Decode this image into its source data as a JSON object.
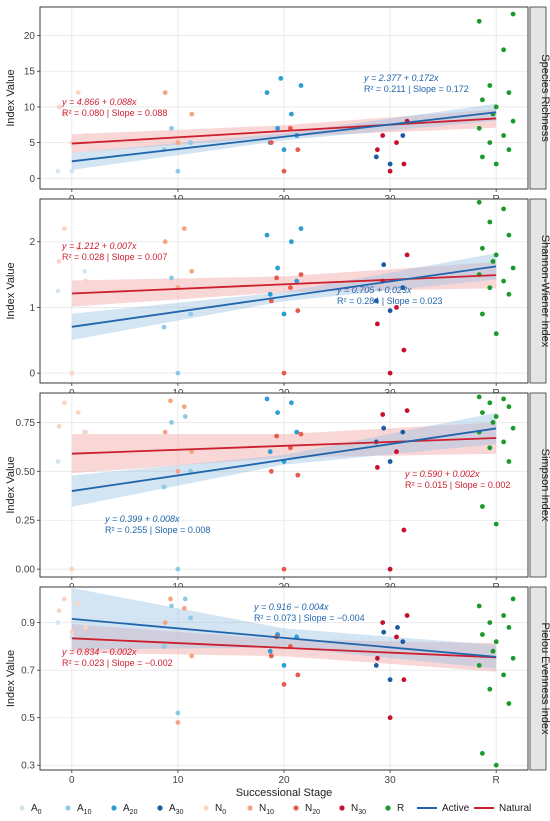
{
  "chart_data": [
    {
      "type": "scatter",
      "title": "Species Richness",
      "ylabel": "Index Value",
      "xlabel": "",
      "ylim": [
        -1.5,
        24
      ],
      "yticks": [
        0,
        5,
        10,
        15,
        20
      ],
      "ytick_labels": [
        "0",
        "5",
        "10",
        "15",
        "20"
      ],
      "points": {
        "A0": [
          1,
          1,
          2
        ],
        "N0": [
          5,
          6,
          10,
          12,
          9
        ],
        "A10": [
          1,
          4,
          5,
          7
        ],
        "N10": [
          5,
          9,
          12
        ],
        "A20": [
          4,
          5,
          6,
          7,
          9,
          12,
          13,
          14
        ],
        "N20": [
          1,
          4,
          5,
          7
        ],
        "A30": [
          2,
          3,
          6
        ],
        "N30": [
          1,
          2,
          4,
          5,
          6,
          8
        ],
        "R": [
          2,
          3,
          4,
          5,
          6,
          7,
          8,
          9,
          10,
          11,
          12,
          13,
          18,
          22,
          23
        ]
      },
      "fits": {
        "active": {
          "intercept": 2.377,
          "slope": 0.172,
          "se": [
            1.2,
            0.5,
            1.2
          ]
        },
        "natural": {
          "intercept": 4.866,
          "slope": 0.088,
          "se": [
            1.3,
            0.8,
            1.3
          ]
        }
      },
      "annotations": [
        {
          "series": "Natural",
          "line1": "y = 4.866 + 0.088x",
          "line2": "R² = 0.080 | Slope = 0.088"
        },
        {
          "series": "Active",
          "line1": "y = 2.377 + 0.172x",
          "line2": "R² = 0.211 | Slope = 0.172"
        }
      ]
    },
    {
      "type": "scatter",
      "title": "Shannon-Wiener Index",
      "ylabel": "Index Value",
      "xlabel": "",
      "ylim": [
        -0.15,
        2.65
      ],
      "yticks": [
        0,
        1,
        2
      ],
      "ytick_labels": [
        "0",
        "1",
        "2"
      ],
      "points": {
        "A0": [
          0.0,
          1.25,
          1.55
        ],
        "N0": [
          0.0,
          1.4,
          1.7,
          1.9,
          2.2
        ],
        "A10": [
          0.0,
          0.7,
          0.9,
          1.45
        ],
        "N10": [
          1.3,
          1.55,
          2.0,
          2.2
        ],
        "A20": [
          0.9,
          1.2,
          1.4,
          1.6,
          2.0,
          2.1,
          2.2
        ],
        "N20": [
          0.0,
          0.95,
          1.1,
          1.3,
          1.45,
          1.5
        ],
        "A30": [
          0.95,
          1.1,
          1.3,
          1.65
        ],
        "N30": [
          0.0,
          0.35,
          0.75,
          1.0,
          1.4,
          1.8
        ],
        "R": [
          0.6,
          0.9,
          1.2,
          1.3,
          1.4,
          1.5,
          1.6,
          1.7,
          1.8,
          1.9,
          2.1,
          2.3,
          2.5,
          2.6
        ]
      },
      "fits": {
        "active": {
          "intercept": 0.705,
          "slope": 0.023,
          "se": [
            0.2,
            0.07,
            0.2
          ]
        },
        "natural": {
          "intercept": 1.212,
          "slope": 0.007,
          "se": [
            0.2,
            0.12,
            0.2
          ]
        }
      },
      "annotations": [
        {
          "series": "Natural",
          "line1": "y = 1.212 + 0.007x",
          "line2": "R² = 0.028 | Slope = 0.007"
        },
        {
          "series": "Active",
          "line1": "y = 0.705 + 0.023x",
          "line2": "R² = 0.284 | Slope = 0.023"
        }
      ]
    },
    {
      "type": "scatter",
      "title": "Simpson Index",
      "ylabel": "Index Value",
      "xlabel": "",
      "ylim": [
        -0.04,
        0.9
      ],
      "yticks": [
        0.0,
        0.25,
        0.5,
        0.75
      ],
      "ytick_labels": [
        "0.00",
        "0.25",
        "0.50",
        "0.75"
      ],
      "points": {
        "A0": [
          0.0,
          0.55,
          0.7
        ],
        "N0": [
          0.0,
          0.7,
          0.73,
          0.8,
          0.85
        ],
        "A10": [
          0.0,
          0.42,
          0.5,
          0.75,
          0.78
        ],
        "N10": [
          0.5,
          0.6,
          0.7,
          0.83,
          0.86
        ],
        "A20": [
          0.55,
          0.6,
          0.7,
          0.8,
          0.85,
          0.87
        ],
        "N20": [
          0.0,
          0.48,
          0.5,
          0.62,
          0.68,
          0.69
        ],
        "A30": [
          0.55,
          0.65,
          0.7,
          0.72
        ],
        "N30": [
          0.0,
          0.2,
          0.52,
          0.6,
          0.79,
          0.81
        ],
        "R": [
          0.23,
          0.32,
          0.55,
          0.62,
          0.65,
          0.7,
          0.72,
          0.75,
          0.78,
          0.8,
          0.83,
          0.85,
          0.87,
          0.88
        ]
      },
      "fits": {
        "active": {
          "intercept": 0.399,
          "slope": 0.008,
          "se": [
            0.08,
            0.025,
            0.08
          ]
        },
        "natural": {
          "intercept": 0.59,
          "slope": 0.002,
          "se": [
            0.1,
            0.06,
            0.08
          ]
        }
      },
      "annotations": [
        {
          "series": "Active",
          "line1": "y = 0.399 + 0.008x",
          "line2": "R² = 0.255 | Slope = 0.008"
        },
        {
          "series": "Natural",
          "line1": "y = 0.590 + 0.002x",
          "line2": "R² = 0.015 | Slope = 0.002"
        }
      ]
    },
    {
      "type": "scatter",
      "title": "Pielou Evenness Index",
      "ylabel": "Index Value",
      "xlabel": "Successional Stage",
      "ylim": [
        0.28,
        1.05
      ],
      "yticks": [
        0.3,
        0.5,
        0.7,
        0.9
      ],
      "ytick_labels": [
        "0.3",
        "0.5",
        "0.7",
        "0.9"
      ],
      "points": {
        "A0": [
          0.84,
          0.9,
          0.95
        ],
        "N0": [
          0.86,
          0.88,
          0.95,
          0.98,
          1.0
        ],
        "A10": [
          0.52,
          0.8,
          0.92,
          0.97,
          1.0
        ],
        "N10": [
          0.48,
          0.76,
          0.9,
          0.96,
          1.0
        ],
        "A20": [
          0.72,
          0.78,
          0.84,
          0.85
        ],
        "N20": [
          0.64,
          0.68,
          0.76,
          0.8,
          0.84
        ],
        "A30": [
          0.66,
          0.72,
          0.82,
          0.86,
          0.88
        ],
        "N30": [
          0.5,
          0.66,
          0.75,
          0.84,
          0.9,
          0.93
        ],
        "R": [
          0.3,
          0.35,
          0.56,
          0.62,
          0.68,
          0.72,
          0.75,
          0.78,
          0.82,
          0.85,
          0.88,
          0.9,
          0.93,
          0.97,
          1.0
        ]
      },
      "fits": {
        "active": {
          "intercept": 0.916,
          "slope": -0.004,
          "se": [
            0.13,
            0.04,
            0.05
          ]
        },
        "natural": {
          "intercept": 0.834,
          "slope": -0.002,
          "se": [
            0.06,
            0.035,
            0.06
          ]
        }
      },
      "annotations": [
        {
          "series": "Active",
          "line1": "y = 0.916 − 0.004x",
          "line2": "R² = 0.073 | Slope = −0.004"
        },
        {
          "series": "Natural",
          "line1": "y = 0.834 − 0.002x",
          "line2": "R² = 0.023 | Slope = −0.002"
        }
      ]
    }
  ],
  "x_axis": {
    "title": "Successional Stage",
    "categories": [
      "0",
      "10",
      "20",
      "30",
      "R"
    ],
    "values": [
      0,
      10,
      20,
      30,
      40
    ]
  },
  "series_colors": {
    "A0": "#d3e6f3",
    "A10": "#8ec9e8",
    "A20": "#2a9fd6",
    "A30": "#1c5aa6",
    "N0": "#fbd5c4",
    "N10": "#f4a582",
    "N20": "#e85a4a",
    "N30": "#c8102e",
    "R": "#1a9a2a",
    "Active": "#2166ac",
    "Natural": "#cc1f2f",
    "ActiveBand": "#9ec3e3",
    "NaturalBand": "#f4a6a6"
  },
  "legend": {
    "placement": "bottom",
    "items": [
      {
        "key": "A0",
        "label": "A",
        "sub": "0",
        "kind": "point"
      },
      {
        "key": "A10",
        "label": "A",
        "sub": "10",
        "kind": "point"
      },
      {
        "key": "A20",
        "label": "A",
        "sub": "20",
        "kind": "point"
      },
      {
        "key": "A30",
        "label": "A",
        "sub": "30",
        "kind": "point"
      },
      {
        "key": "N0",
        "label": "N",
        "sub": "0",
        "kind": "point"
      },
      {
        "key": "N10",
        "label": "N",
        "sub": "10",
        "kind": "point"
      },
      {
        "key": "N20",
        "label": "N",
        "sub": "20",
        "kind": "point"
      },
      {
        "key": "N30",
        "label": "N",
        "sub": "30",
        "kind": "point"
      },
      {
        "key": "R",
        "label": "R",
        "sub": "",
        "kind": "point"
      },
      {
        "key": "Active",
        "label": "Active",
        "sub": "",
        "kind": "line"
      },
      {
        "key": "Natural",
        "label": "Natural",
        "sub": "",
        "kind": "line"
      }
    ]
  }
}
